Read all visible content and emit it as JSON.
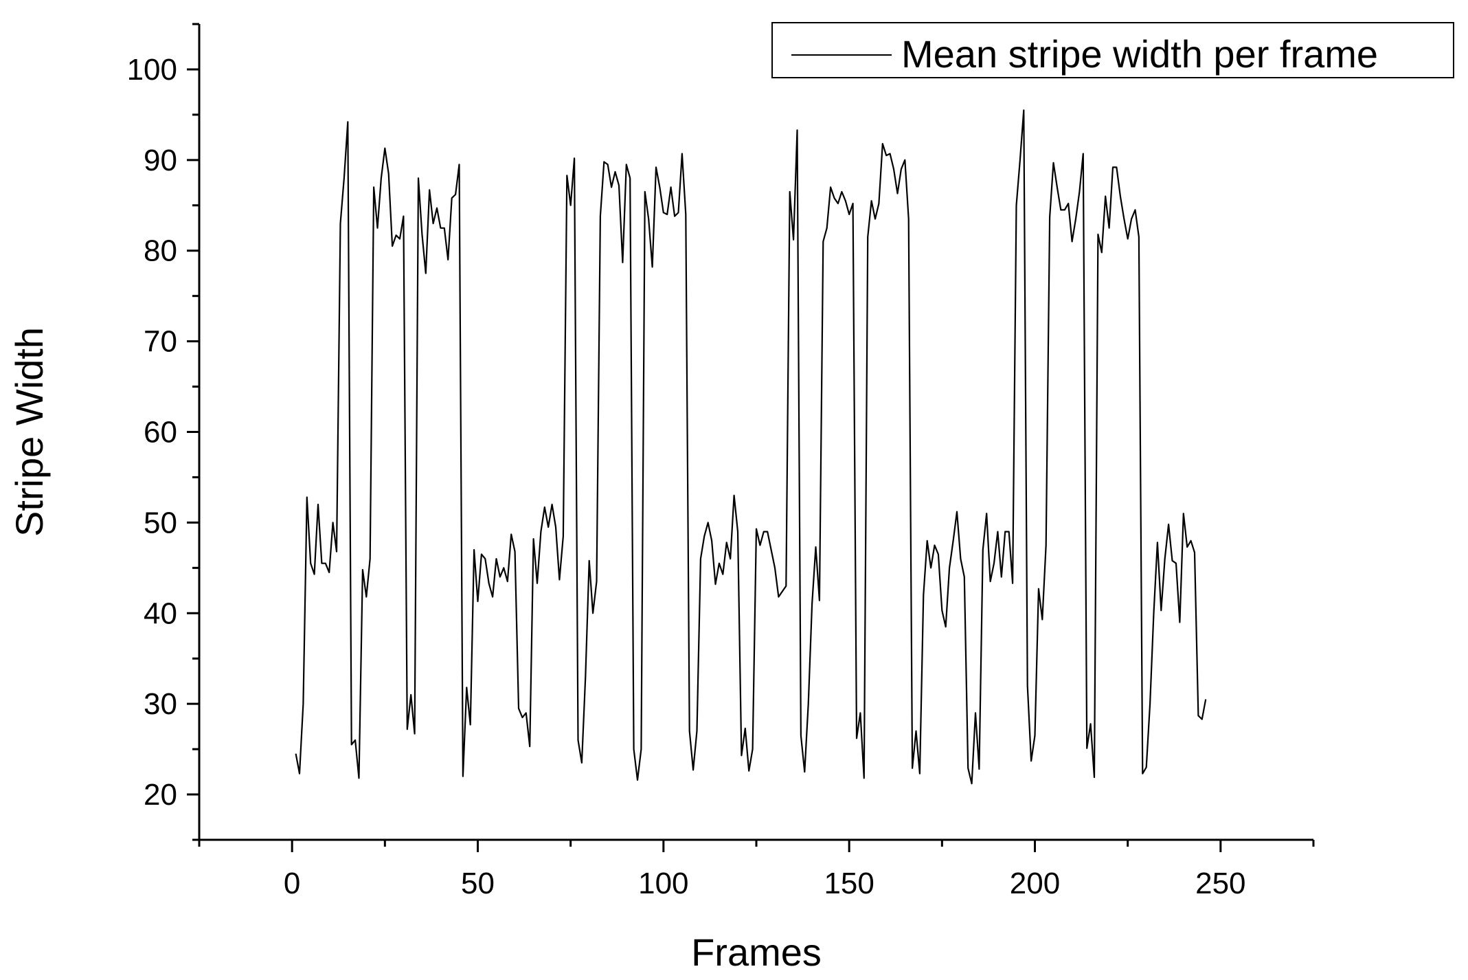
{
  "chart_data": {
    "type": "line",
    "title": "",
    "xlabel": "Frames",
    "ylabel": "Stripe Width",
    "xlim": [
      -25,
      275
    ],
    "ylim": [
      15,
      105
    ],
    "xticks": [
      0,
      50,
      100,
      150,
      200,
      250
    ],
    "yticks": [
      20,
      30,
      40,
      50,
      60,
      70,
      80,
      90,
      100
    ],
    "grid": false,
    "legend_position": "top-right",
    "series": [
      {
        "name": "Mean stripe width per frame",
        "color": "#000000",
        "x": [
          1,
          2,
          3,
          4,
          5,
          6,
          7,
          8,
          9,
          10,
          11,
          12,
          13,
          14,
          15,
          16,
          17,
          18,
          19,
          20,
          21,
          22,
          23,
          24,
          25,
          26,
          27,
          28,
          29,
          30,
          31,
          32,
          33,
          34,
          35,
          36,
          37,
          38,
          39,
          40,
          41,
          42,
          43,
          44,
          45,
          46,
          47,
          48,
          49,
          50,
          51,
          52,
          53,
          54,
          55,
          56,
          57,
          58,
          59,
          60,
          61,
          62,
          63,
          64,
          65,
          66,
          67,
          68,
          69,
          70,
          71,
          72,
          73,
          74,
          75,
          76,
          77,
          78,
          79,
          80,
          81,
          82,
          83,
          84,
          85,
          86,
          87,
          88,
          89,
          90,
          91,
          92,
          93,
          94,
          95,
          96,
          97,
          98,
          99,
          100,
          101,
          102,
          103,
          104,
          105,
          106,
          107,
          108,
          109,
          110,
          111,
          112,
          113,
          114,
          115,
          116,
          117,
          118,
          119,
          120,
          121,
          122,
          123,
          124,
          125,
          126,
          127,
          128,
          129,
          130,
          131,
          132,
          133,
          134,
          135,
          136,
          137,
          138,
          139,
          140,
          141,
          142,
          143,
          144,
          145,
          146,
          147,
          148,
          149,
          150,
          151,
          152,
          153,
          154,
          155,
          156,
          157,
          158,
          159,
          160,
          161,
          162,
          163,
          164,
          165,
          166,
          167,
          168,
          169,
          170,
          171,
          172,
          173,
          174,
          175,
          176,
          177,
          178,
          179,
          180,
          181,
          182,
          183,
          184,
          185,
          186,
          187,
          188,
          189,
          190,
          191,
          192,
          193,
          194,
          195,
          196,
          197,
          198,
          199,
          200,
          201,
          202,
          203,
          204,
          205,
          206,
          207,
          208,
          209,
          210,
          211,
          212,
          213,
          214,
          215,
          216,
          217,
          218,
          219,
          220,
          221,
          222,
          223,
          224,
          225,
          226,
          227,
          228,
          229,
          230,
          231,
          232,
          233,
          234,
          235,
          236,
          237,
          238,
          239,
          240,
          241,
          242,
          243,
          244,
          245,
          246
        ],
        "y": [
          24.5,
          22.3,
          30,
          52.8,
          45.5,
          44.3,
          52,
          45.5,
          45.5,
          44.5,
          50,
          46.8,
          83,
          88,
          94.2,
          25.5,
          26,
          21.8,
          44.8,
          41.8,
          46,
          87,
          82.5,
          88,
          91.3,
          88.5,
          80.5,
          81.7,
          81.3,
          83.8,
          27.2,
          31,
          26.7,
          88,
          81.8,
          77.5,
          86.7,
          83,
          84.7,
          82.5,
          82.5,
          79,
          85.8,
          86.2,
          89.5,
          22,
          31.8,
          27.7,
          47,
          41.3,
          46.5,
          46,
          43.3,
          41.8,
          46,
          44,
          45,
          43.5,
          48.7,
          46.8,
          29.5,
          28.5,
          29,
          25.3,
          48.2,
          43.3,
          49,
          51.7,
          49.5,
          52,
          49.5,
          43.7,
          48.5,
          88.3,
          85,
          90.2,
          26,
          23.5,
          33,
          45.8,
          40,
          43.5,
          83.8,
          89.8,
          89.5,
          87,
          88.7,
          87.2,
          78.7,
          89.5,
          88,
          25,
          21.6,
          25,
          86.5,
          83.5,
          78.2,
          89.2,
          87,
          84.2,
          84,
          87,
          83.8,
          84.2,
          90.7,
          84,
          27,
          22.7,
          27,
          46,
          48.5,
          50,
          48,
          43.2,
          45.5,
          44.3,
          47.8,
          46,
          53,
          49,
          24.3,
          27.3,
          22.6,
          25,
          49.3,
          47.5,
          49,
          49,
          47,
          45,
          41.8,
          42.4,
          43,
          86.5,
          81.2,
          93.3,
          26.5,
          22.5,
          30,
          41,
          47.3,
          41.4,
          81,
          82.5,
          87,
          85.8,
          85.2,
          86.5,
          85.5,
          84,
          85.2,
          26.2,
          29,
          21.8,
          81.5,
          85.5,
          83.5,
          85.2,
          91.8,
          90.5,
          90.7,
          89,
          86.3,
          89,
          90,
          83.5,
          22.9,
          27,
          22.3,
          42,
          48,
          45,
          47.5,
          46.5,
          40.3,
          38.5,
          45,
          48,
          51.2,
          46,
          44,
          22.9,
          21.2,
          29,
          22.8,
          47,
          51,
          43.5,
          45.5,
          49,
          44,
          49,
          49,
          43.3,
          85,
          90,
          95.5,
          32,
          23.7,
          26.5,
          42.7,
          39.3,
          47.5,
          83.7,
          89.7,
          87,
          84.5,
          84.5,
          85.2,
          81,
          83.5,
          86.5,
          90.7,
          25.1,
          27.8,
          21.9,
          81.8,
          79.8,
          86,
          82.5,
          89.2,
          89.2,
          86,
          83.5,
          81.3,
          83.5,
          84.5,
          81.5,
          22.3,
          23,
          30,
          40,
          47.8,
          40.3,
          46,
          49.8,
          45.8,
          45.5,
          39,
          51,
          47.3,
          48,
          46.7,
          28.7,
          28.3,
          30.5
        ]
      }
    ]
  }
}
